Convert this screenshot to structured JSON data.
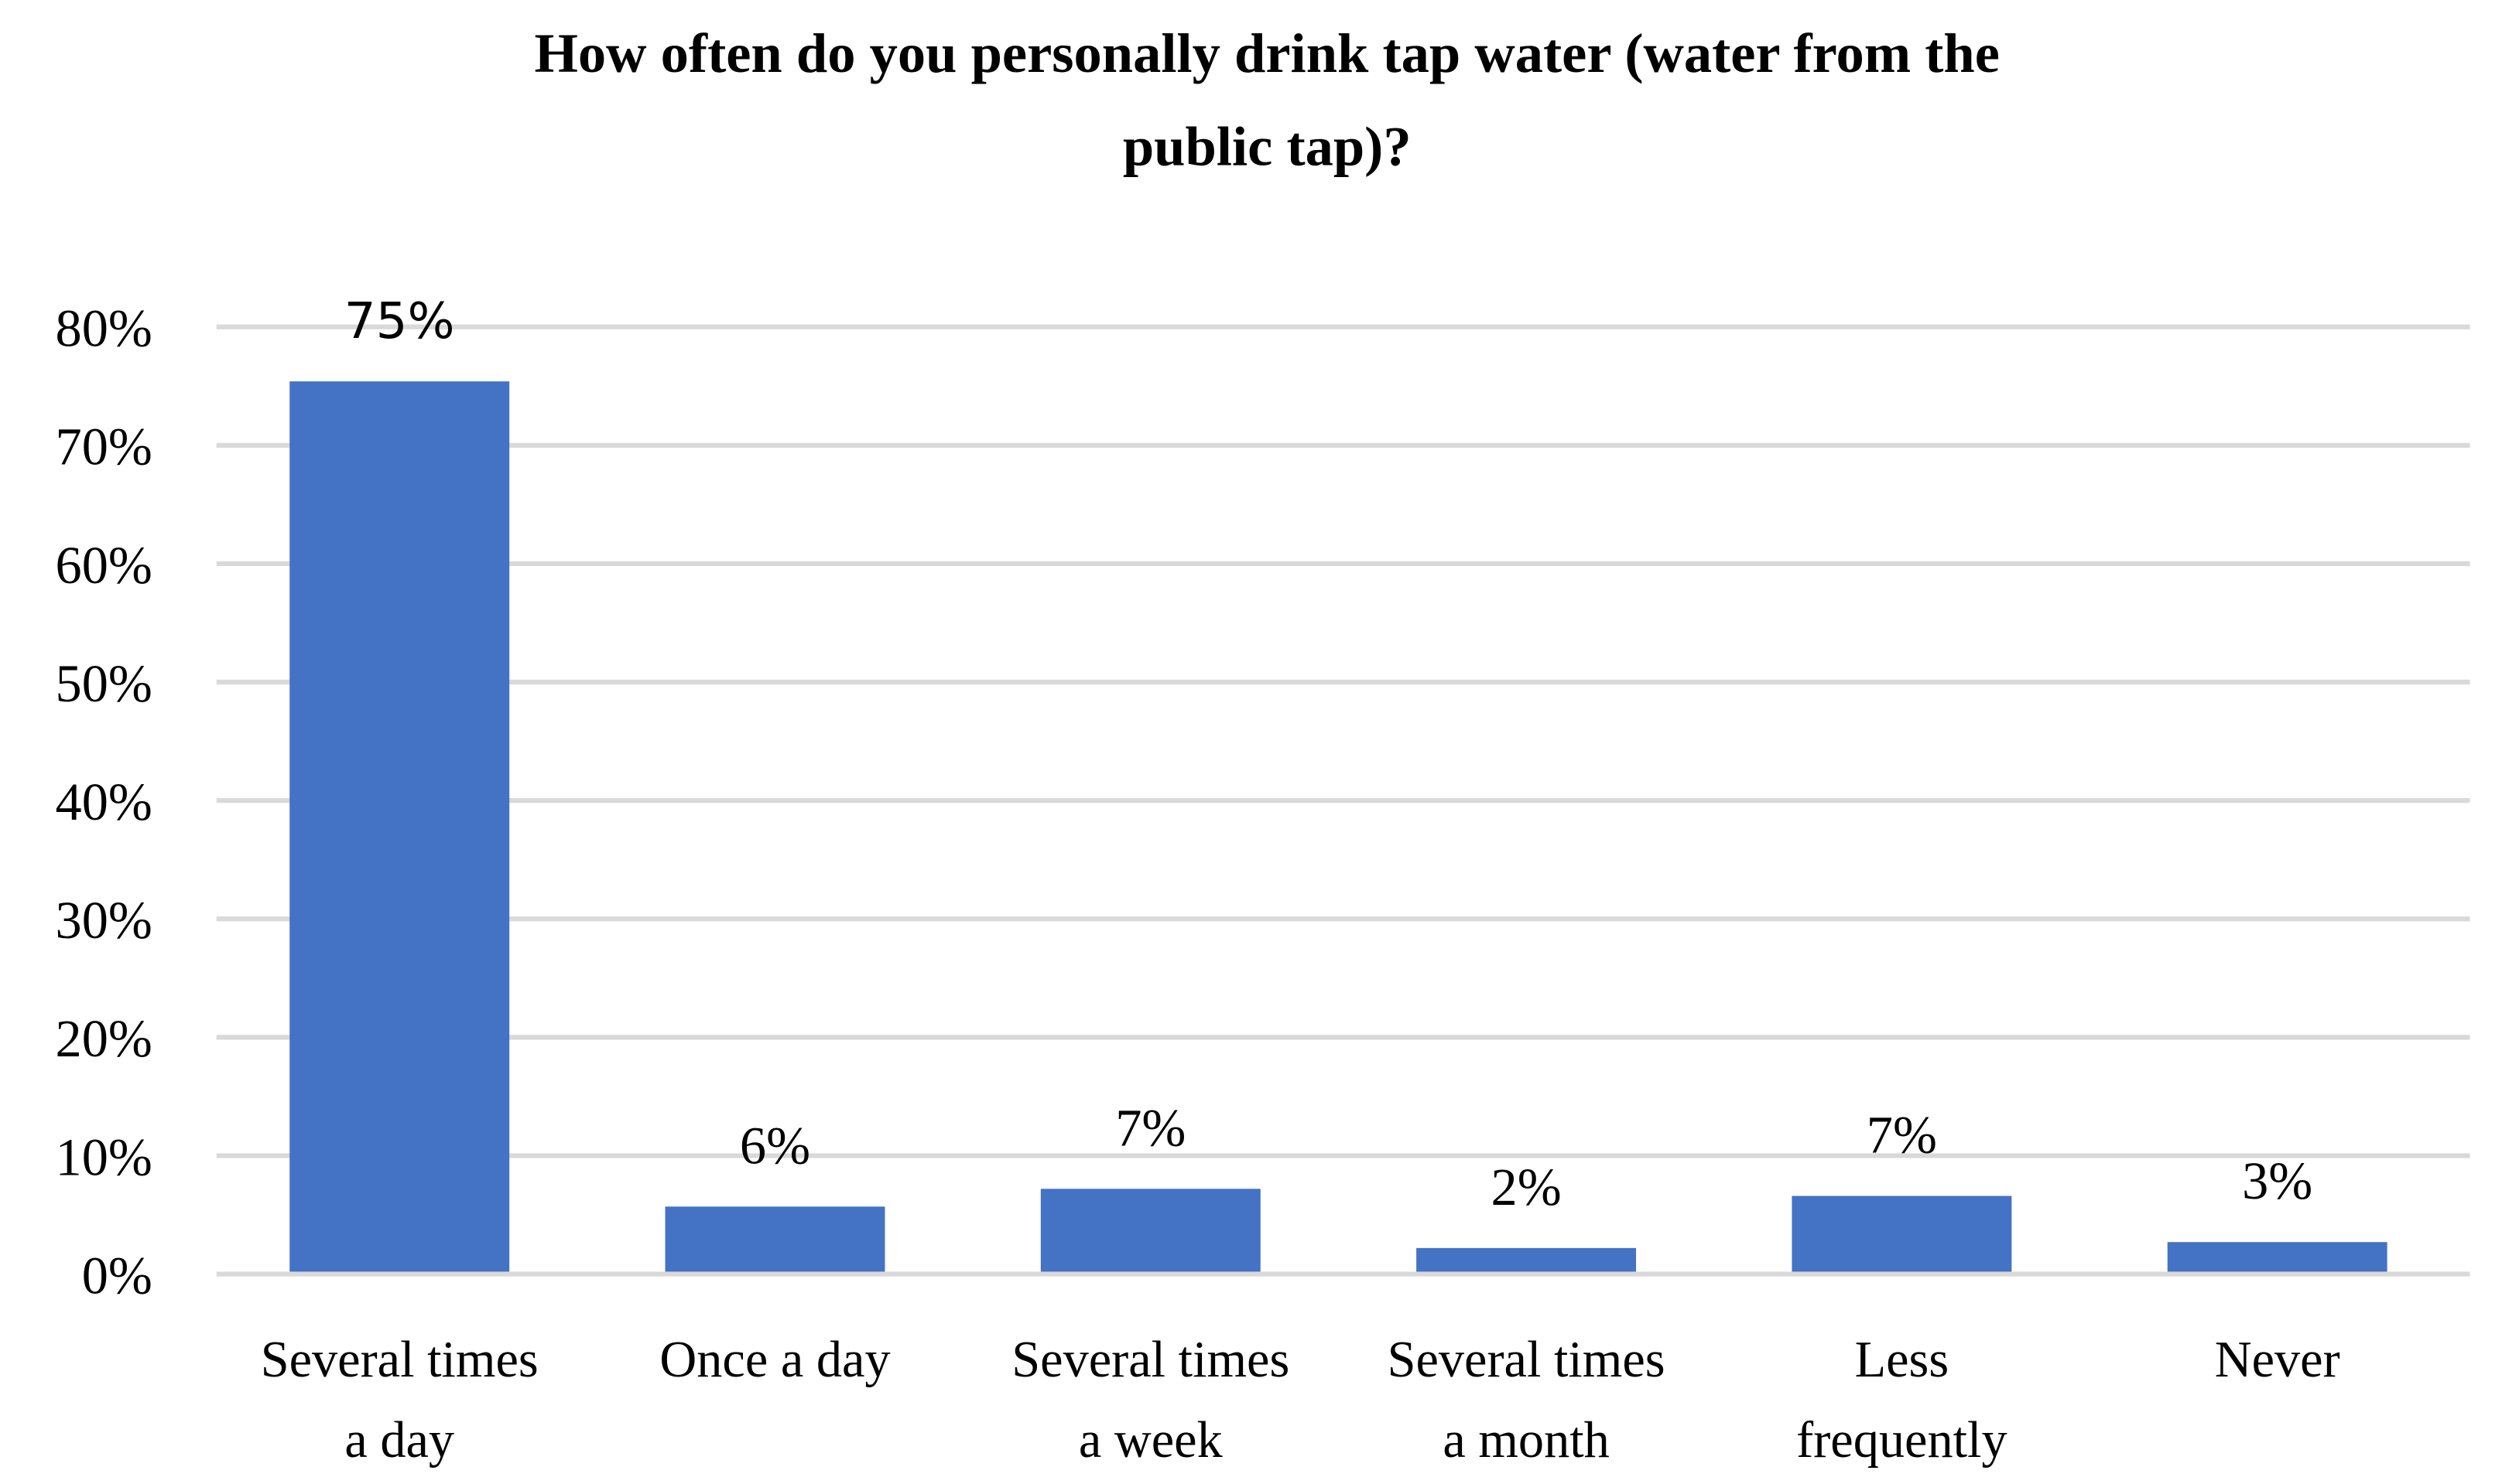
{
  "chart_data": {
    "type": "bar",
    "title": [
      "How often do you personally drink tap water (water from the",
      "public tap)?"
    ],
    "categories": [
      [
        "Several times",
        "a day"
      ],
      [
        "Once a day"
      ],
      [
        "Several times",
        "a week"
      ],
      [
        "Several times",
        "a month"
      ],
      [
        "Less",
        "frequently"
      ],
      [
        "Never"
      ]
    ],
    "values": [
      75.4,
      5.7,
      7.2,
      2.2,
      6.6,
      2.7
    ],
    "data_labels": [
      "75%",
      "6%",
      "7%",
      "2%",
      "7%",
      "3%"
    ],
    "yticks": [
      "0%",
      "10%",
      "20%",
      "30%",
      "40%",
      "50%",
      "60%",
      "70%",
      "80%"
    ],
    "ylim": [
      0,
      80
    ],
    "xlabel": "",
    "ylabel": "",
    "grid": true,
    "legend": "none",
    "bar_color": "#4472C4",
    "grid_color": "#D9D9D9"
  }
}
